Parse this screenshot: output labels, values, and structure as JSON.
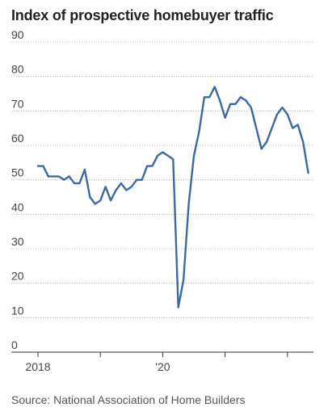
{
  "chart_data": {
    "type": "line",
    "title": "Index of prospective homebuyer traffic",
    "source": "Source: National Association of Home Builders",
    "xlabel": "",
    "ylabel": "",
    "ylim": [
      0,
      90
    ],
    "yticks": [
      0,
      10,
      20,
      30,
      40,
      50,
      60,
      70,
      80,
      90
    ],
    "xlim": [
      "2018-01",
      "2022-06"
    ],
    "xtick_labels": [
      {
        "x": "2018-01",
        "label": "2018"
      },
      {
        "x": "2020-01",
        "label": "'20"
      }
    ],
    "xtick_marks": [
      "2018-01",
      "2019-01",
      "2020-01",
      "2021-01",
      "2022-01"
    ],
    "grid": "horizontal dotted",
    "line_color": "#3c6a9e",
    "series": [
      {
        "name": "",
        "points": [
          [
            "2018-01",
            54
          ],
          [
            "2018-02",
            54
          ],
          [
            "2018-03",
            51
          ],
          [
            "2018-04",
            51
          ],
          [
            "2018-05",
            51
          ],
          [
            "2018-06",
            50
          ],
          [
            "2018-07",
            51
          ],
          [
            "2018-08",
            49
          ],
          [
            "2018-09",
            49
          ],
          [
            "2018-10",
            53
          ],
          [
            "2018-11",
            45
          ],
          [
            "2018-12",
            43
          ],
          [
            "2019-01",
            44
          ],
          [
            "2019-02",
            48
          ],
          [
            "2019-03",
            44
          ],
          [
            "2019-04",
            47
          ],
          [
            "2019-05",
            49
          ],
          [
            "2019-06",
            47
          ],
          [
            "2019-07",
            48
          ],
          [
            "2019-08",
            50
          ],
          [
            "2019-09",
            50
          ],
          [
            "2019-10",
            54
          ],
          [
            "2019-11",
            54
          ],
          [
            "2019-12",
            57
          ],
          [
            "2020-01",
            58
          ],
          [
            "2020-02",
            57
          ],
          [
            "2020-03",
            56
          ],
          [
            "2020-04",
            13
          ],
          [
            "2020-05",
            21
          ],
          [
            "2020-06",
            43
          ],
          [
            "2020-07",
            57
          ],
          [
            "2020-08",
            64
          ],
          [
            "2020-09",
            74
          ],
          [
            "2020-10",
            74
          ],
          [
            "2020-11",
            77
          ],
          [
            "2020-12",
            73
          ],
          [
            "2021-01",
            68
          ],
          [
            "2021-02",
            72
          ],
          [
            "2021-03",
            72
          ],
          [
            "2021-04",
            74
          ],
          [
            "2021-05",
            73
          ],
          [
            "2021-06",
            71
          ],
          [
            "2021-07",
            65
          ],
          [
            "2021-08",
            59
          ],
          [
            "2021-09",
            61
          ],
          [
            "2021-10",
            65
          ],
          [
            "2021-11",
            69
          ],
          [
            "2021-12",
            71
          ],
          [
            "2022-01",
            69
          ],
          [
            "2022-02",
            65
          ],
          [
            "2022-03",
            66
          ],
          [
            "2022-04",
            61
          ],
          [
            "2022-05",
            52
          ]
        ]
      }
    ]
  }
}
